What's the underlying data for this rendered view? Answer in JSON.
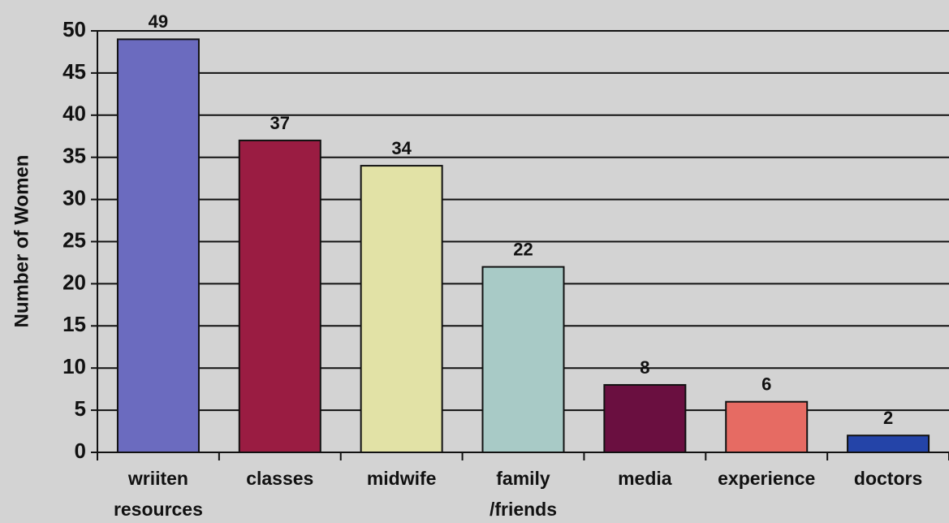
{
  "chart_data": {
    "type": "bar",
    "y_label": "Number of Women",
    "categories": [
      [
        "wriiten",
        "resources"
      ],
      [
        "classes"
      ],
      [
        "midwife"
      ],
      [
        "family",
        "/friends"
      ],
      [
        "media"
      ],
      [
        "experience"
      ],
      [
        "doctors"
      ]
    ],
    "values": [
      49,
      37,
      34,
      22,
      8,
      6,
      2
    ],
    "colors": [
      "#6b6bbf",
      "#9a1c42",
      "#e2e2a6",
      "#a8cac6",
      "#6a0f40",
      "#e66b63",
      "#2444a8"
    ],
    "ylim": [
      0,
      50
    ],
    "yticks": [
      0,
      5,
      10,
      15,
      20,
      25,
      30,
      35,
      40,
      45,
      50
    ],
    "grid": true
  }
}
